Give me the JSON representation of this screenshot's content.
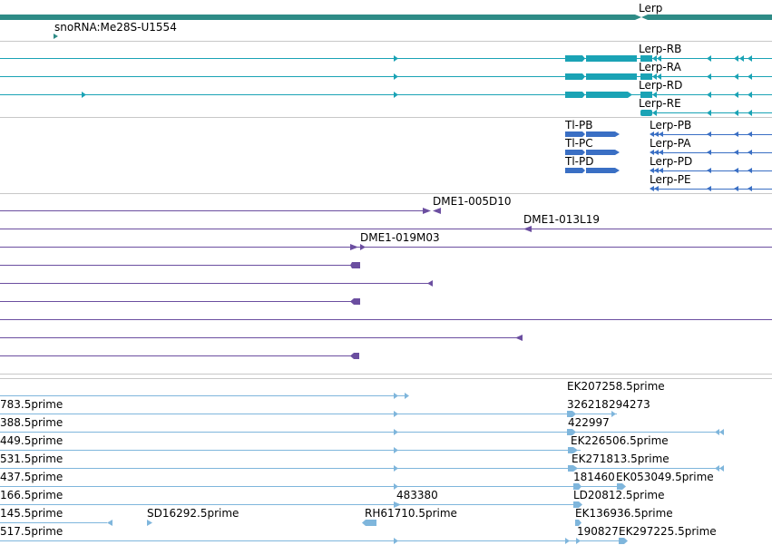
{
  "colors": {
    "gene": "#2e8b86",
    "transcript": "#1aa3b5",
    "protein": "#3a6fc4",
    "clone": "#6b4ea0",
    "est": "#7fb6dc",
    "divider": "#c8c8c8"
  },
  "gene_track": {
    "gene_label": "Lerp",
    "snorna_label": "snoRNA:Me28S-U1554"
  },
  "transcript_track": {
    "labels": [
      "Lerp-RB",
      "Lerp-RA",
      "Lerp-RD",
      "Lerp-RE"
    ]
  },
  "protein_track": {
    "left_labels": [
      "Tl-PB",
      "Tl-PC",
      "Tl-PD"
    ],
    "right_labels": [
      "Lerp-PB",
      "Lerp-PA",
      "Lerp-PD",
      "Lerp-PE"
    ]
  },
  "clone_track": {
    "labels": [
      "DME1-005D10",
      "DME1-013L19",
      "DME1-019M03"
    ]
  },
  "est_track": {
    "left_labels": [
      "783.5prime",
      "388.5prime",
      "449.5prime",
      "531.5prime",
      "437.5prime",
      "166.5prime",
      "145.5prime",
      "517.5prime"
    ],
    "right_labels": [
      "EK207258.5prime",
      "326218",
      "294273",
      "422997",
      "EK226506.5prime",
      "EK271813.5prime",
      "181460",
      "EK053049.5prime",
      "LD20812.5prime",
      "EK136936.5prime",
      "190827",
      "EK297225.5prime"
    ],
    "mid_labels": [
      "483380",
      "SD16292.5prime",
      "RH61710.5prime"
    ]
  }
}
